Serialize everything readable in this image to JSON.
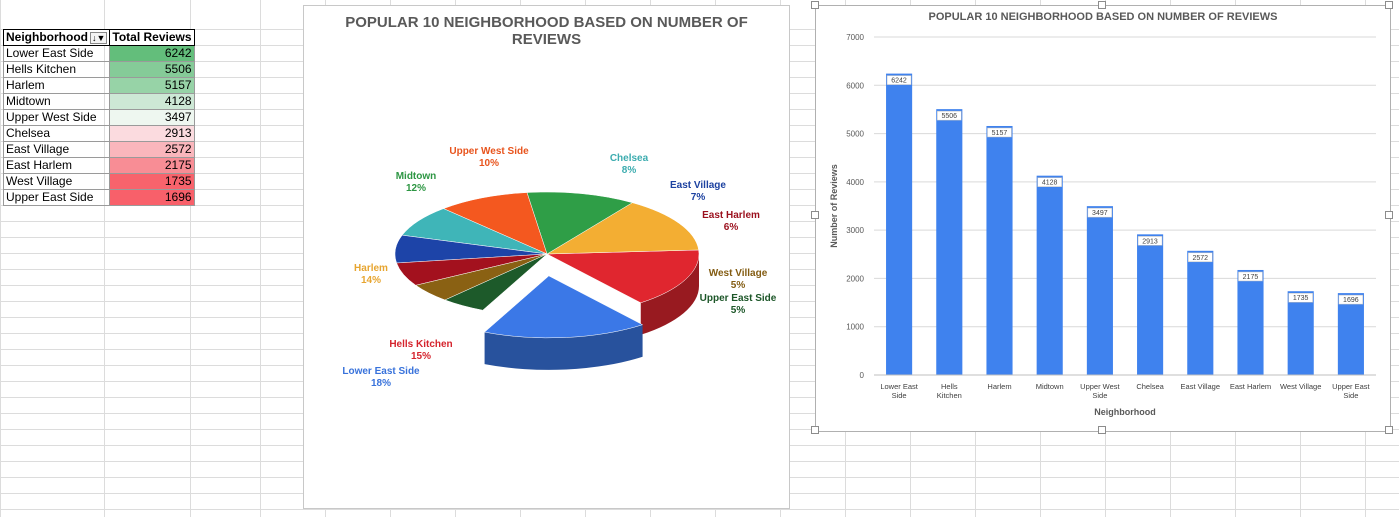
{
  "table": {
    "headers": [
      "Neighborhood",
      "Total Reviews"
    ],
    "filter_icon": "↓▼",
    "rows": [
      {
        "name": "Lower East Side",
        "value": "6242",
        "color": "#63be7b"
      },
      {
        "name": "Hells Kitchen",
        "value": "5506",
        "color": "#85cb98"
      },
      {
        "name": "Harlem",
        "value": "5157",
        "color": "#97d3a7"
      },
      {
        "name": "Midtown",
        "value": "4128",
        "color": "#cde8d5"
      },
      {
        "name": "Upper West Side",
        "value": "3497",
        "color": "#eef7f0"
      },
      {
        "name": "Chelsea",
        "value": "2913",
        "color": "#fbdbdf"
      },
      {
        "name": "East Village",
        "value": "2572",
        "color": "#fab6bc"
      },
      {
        "name": "East Harlem",
        "value": "2175",
        "color": "#f88d95"
      },
      {
        "name": "West Village",
        "value": "1735",
        "color": "#f8636c"
      },
      {
        "name": "Upper East Side",
        "value": "1696",
        "color": "#f8606a"
      }
    ]
  },
  "chart_data": [
    {
      "type": "pie",
      "title": "POPULAR 10 NEIGHBORHOOD BASED ON NUMBER OF REVIEWS",
      "categories": [
        "Lower East Side",
        "Hells Kitchen",
        "Harlem",
        "Midtown",
        "Upper West Side",
        "Chelsea",
        "East Village",
        "East Harlem",
        "West Village",
        "Upper East Side"
      ],
      "values": [
        6242,
        5506,
        5157,
        4128,
        3497,
        2913,
        2572,
        2175,
        1735,
        1696
      ],
      "percent_labels": [
        "18%",
        "15%",
        "14%",
        "12%",
        "10%",
        "8%",
        "7%",
        "6%",
        "5%",
        "5%"
      ],
      "colors": [
        "#3b78e7",
        "#e0262f",
        "#f3ae33",
        "#2f9e47",
        "#f4581f",
        "#3fb5b8",
        "#1d44a8",
        "#a3111e",
        "#8a6113",
        "#1d5a2a"
      ],
      "exploded": "Lower East Side",
      "legend": "none"
    },
    {
      "type": "bar",
      "title": "POPULAR 10 NEIGHBORHOOD BASED ON NUMBER OF REVIEWS",
      "categories": [
        "Lower East Side",
        "Hells Kitchen",
        "Harlem",
        "Midtown",
        "Upper West Side",
        "Chelsea",
        "East Village",
        "East Harlem",
        "West Village",
        "Upper East Side"
      ],
      "values": [
        6242,
        5506,
        5157,
        4128,
        3497,
        2913,
        2572,
        2175,
        1735,
        1696
      ],
      "xlabel": "Neighborhood",
      "ylabel": "Number of Reviews",
      "ylim": [
        0,
        7000
      ],
      "yticks": [
        "0",
        "1000",
        "2000",
        "3000",
        "4000",
        "5000",
        "6000",
        "7000"
      ],
      "grid": true,
      "bar_color": "#3f82ee",
      "legend": "none"
    }
  ]
}
